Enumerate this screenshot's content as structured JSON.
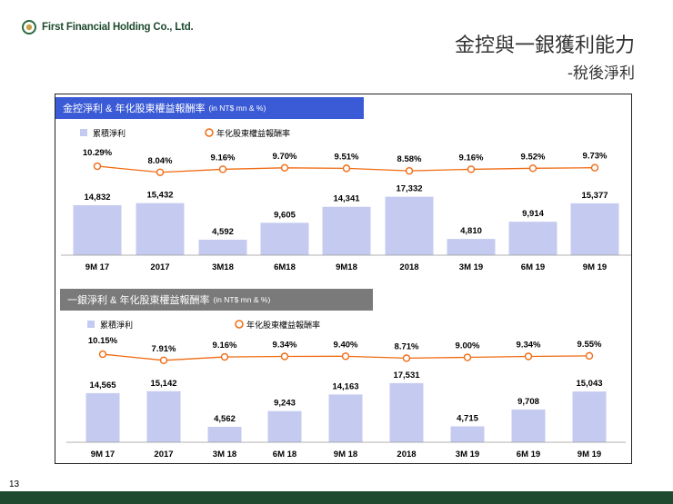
{
  "header": {
    "company": "First Financial Holding Co., Ltd.",
    "title": "金控與一銀獲利能力",
    "subtitle": "-稅後淨利"
  },
  "page_number": "13",
  "colors": {
    "bar": "#c5cbf0",
    "line": "#f06a12",
    "panel1_head": "#3b5bd6",
    "panel2_head": "#7a7a7a",
    "footer": "#1f4a2f"
  },
  "chart_data": [
    {
      "type": "bar",
      "title": "金控淨利 & 年化股東權益報酬率",
      "unit_note": "(in NT$ mn & %)",
      "legend": {
        "bar": "累積淨利",
        "line": "年化股東權益報酬率"
      },
      "categories": [
        "9M 17",
        "2017",
        "3M18",
        "6M18",
        "9M18",
        "2018",
        "3M 19",
        "6M 19",
        "9M 19"
      ],
      "values": [
        14832,
        15432,
        4592,
        9605,
        14341,
        17332,
        4810,
        9914,
        15377
      ],
      "value_labels": [
        "14,832",
        "15,432",
        "4,592",
        "9,605",
        "14,341",
        "17,332",
        "4,810",
        "9,914",
        "15,377"
      ],
      "line_values": [
        10.29,
        8.04,
        9.16,
        9.7,
        9.51,
        8.58,
        9.16,
        9.52,
        9.73
      ],
      "line_labels": [
        "10.29%",
        "8.04%",
        "9.16%",
        "9.70%",
        "9.51%",
        "8.58%",
        "9.16%",
        "9.52%",
        "9.73%"
      ],
      "ylim": [
        0,
        20000
      ]
    },
    {
      "type": "bar",
      "title": "一銀淨利 & 年化股東權益報酬率",
      "unit_note": "(in NT$ mn & %)",
      "legend": {
        "bar": "累積淨利",
        "line": "年化股東權益報酬率"
      },
      "categories": [
        "9M 17",
        "2017",
        "3M 18",
        "6M 18",
        "9M 18",
        "2018",
        "3M 19",
        "6M 19",
        "9M 19"
      ],
      "values": [
        14565,
        15142,
        4562,
        9243,
        14163,
        17531,
        4715,
        9708,
        15043
      ],
      "value_labels": [
        "14,565",
        "15,142",
        "4,562",
        "9,243",
        "14,163",
        "17,531",
        "4,715",
        "9,708",
        "15,043"
      ],
      "line_values": [
        10.15,
        7.91,
        9.16,
        9.34,
        9.4,
        8.71,
        9.0,
        9.34,
        9.55
      ],
      "line_labels": [
        "10.15%",
        "7.91%",
        "9.16%",
        "9.34%",
        "9.40%",
        "8.71%",
        "9.00%",
        "9.34%",
        "9.55%"
      ],
      "ylim": [
        0,
        20000
      ]
    }
  ]
}
